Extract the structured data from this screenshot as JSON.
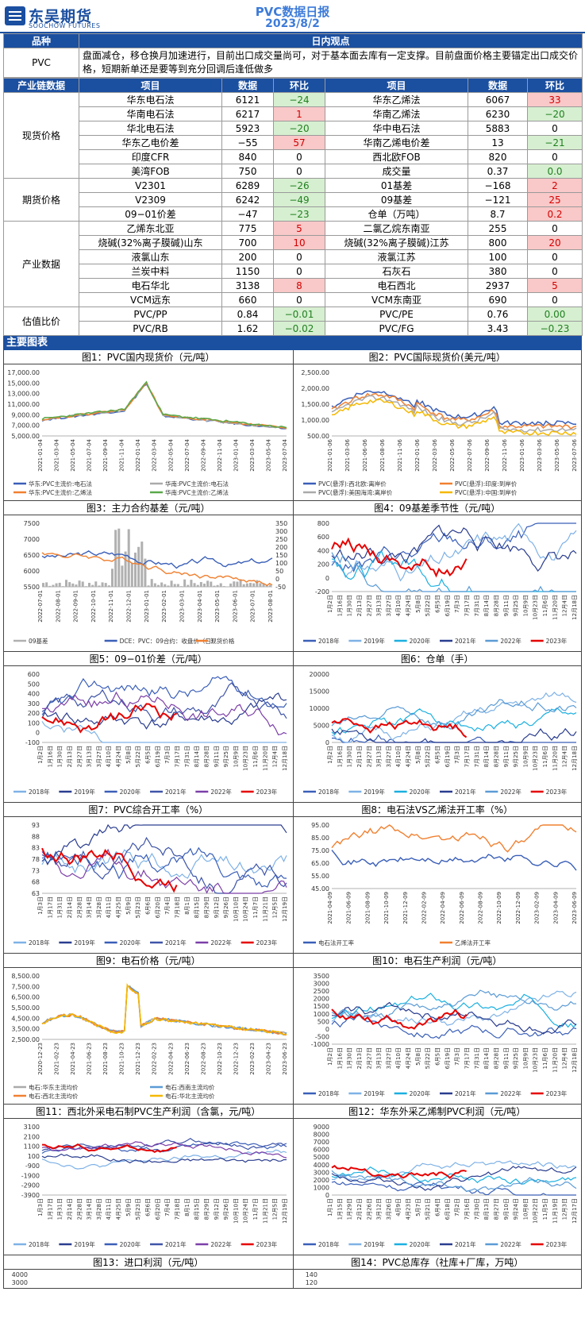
{
  "header": {
    "logo_cn": "东吴期货",
    "logo_en": "SOOCHOW FUTURES",
    "title": "PVC数据日报",
    "date": "2023/8/2"
  },
  "view": {
    "col1": "品种",
    "col2": "日内观点",
    "product": "PVC",
    "text": "盘面减仓，移仓换月加速进行，目前出口成交量尚可，对于基本面去库有一定支撑。目前盘面价格主要锚定出口成交价格，短期新单还是要等到充分回调后逢低做多"
  },
  "table": {
    "headers": [
      "产业链数据",
      "项目",
      "数据",
      "环比",
      "项目",
      "数据",
      "环比"
    ],
    "groups": [
      {
        "name": "现货价格",
        "rows": [
          [
            "华东电石法",
            "6121",
            "−24",
            "down",
            "华东乙烯法",
            "6067",
            "33",
            "up"
          ],
          [
            "华南电石法",
            "6217",
            "1",
            "up",
            "华南乙烯法",
            "6230",
            "−20",
            "down"
          ],
          [
            "华北电石法",
            "5923",
            "−20",
            "down",
            "华中电石法",
            "5883",
            "0",
            "zero"
          ],
          [
            "华东乙电价差",
            "−55",
            "57",
            "up",
            "华南乙烯电价差",
            "13",
            "−21",
            "down"
          ],
          [
            "印度CFR",
            "840",
            "0",
            "zero",
            "西北欧FOB",
            "820",
            "0",
            "zero"
          ],
          [
            "美湾FOB",
            "750",
            "0",
            "zero",
            "成交量",
            "0.37",
            "0.0",
            "down"
          ]
        ]
      },
      {
        "name": "期货价格",
        "rows": [
          [
            "V2301",
            "6289",
            "−26",
            "down",
            "01基差",
            "−168",
            "2",
            "up"
          ],
          [
            "V2309",
            "6242",
            "−49",
            "down",
            "09基差",
            "−121",
            "25",
            "up"
          ],
          [
            "09−01价差",
            "−47",
            "−23",
            "down",
            "仓单（万吨）",
            "8.7",
            "0.2",
            "up"
          ]
        ]
      },
      {
        "name": "产业数据",
        "rows": [
          [
            "乙烯东北亚",
            "775",
            "5",
            "up",
            "二氯乙烷东南亚",
            "255",
            "0",
            "zero"
          ],
          [
            "烧碱(32%离子膜碱)山东",
            "700",
            "10",
            "up",
            "烧碱(32%离子膜碱)江苏",
            "800",
            "20",
            "up"
          ],
          [
            "液氯山东",
            "200",
            "0",
            "zero",
            "液氯江苏",
            "100",
            "0",
            "zero"
          ],
          [
            "兰炭中料",
            "1150",
            "0",
            "zero",
            "石灰石",
            "380",
            "0",
            "zero"
          ],
          [
            "电石华北",
            "3138",
            "8",
            "up",
            "电石西北",
            "2937",
            "5",
            "up"
          ],
          [
            "VCM远东",
            "660",
            "0",
            "zero",
            "VCM东南亚",
            "690",
            "0",
            "zero"
          ]
        ]
      },
      {
        "name": "估值比价",
        "rows": [
          [
            "PVC/PP",
            "0.84",
            "−0.01",
            "down",
            "PVC/PE",
            "0.76",
            "0.00",
            "down"
          ],
          [
            "PVC/RB",
            "1.62",
            "−0.02",
            "down",
            "PVC/FG",
            "3.43",
            "−0.23",
            "down"
          ]
        ]
      }
    ]
  },
  "section_title": "主要图表",
  "colors": {
    "blue_dark": "#3a5fb8",
    "blue_light": "#7fb2e6",
    "cyan": "#1ab0e0",
    "navy": "#2a3d8f",
    "purple": "#7c3fa8",
    "red": "#e60000",
    "orange": "#f08030",
    "gray": "#aaaaaa",
    "green": "#5aa84a"
  },
  "charts": [
    {
      "title": "图1：PVC国内现货价（元/吨）",
      "y_ticks": [
        "17,000.00",
        "15,000.00",
        "13,000.00",
        "11,000.00",
        "9,000.00",
        "7,000.00",
        "5,000.00"
      ],
      "x_ticks": [
        "2021-01-04",
        "2021-03-04",
        "2021-05-04",
        "2021-07-04",
        "2021-09-04",
        "2021-11-04",
        "2022-01-04",
        "2022-03-04",
        "2022-05-04",
        "2022-07-04",
        "2022-09-04",
        "2022-11-04",
        "2023-01-04",
        "2023-03-04",
        "2023-05-04",
        "2023-07-04"
      ],
      "legend": [
        "华东:PVC主流价:电石法",
        "华南:PVC主流价:电石法",
        "华东:PVC主流价:乙烯法",
        "华南:PVC主流价:乙烯法"
      ]
    },
    {
      "title": "图2：PVC国际现货价(美元/吨）",
      "y_ticks": [
        "2,500.00",
        "2,000.00",
        "1,500.00",
        "1,000.00",
        "500.00"
      ],
      "x_ticks": [
        "2021-01-06",
        "2021-03-06",
        "2021-06-06",
        "2021-08-06",
        "2021-11-06",
        "2022-01-06",
        "2022-03-06",
        "2022-05-06",
        "2022-07-06",
        "2022-09-06",
        "2022-11-06",
        "2023-01-06",
        "2023-03-06",
        "2023-05-06",
        "2023-07-06"
      ],
      "legend": [
        "PVC(悬浮):西北欧:离岸价",
        "PVC(悬浮):印度:到岸价",
        "PVC(悬浮):美国海湾:离岸价",
        "PVC(悬浮):中国:到岸价"
      ]
    },
    {
      "title": "图3：主力合约基差（元/吨）",
      "y_ticks": [
        "7500",
        "7000",
        "6500",
        "6000",
        "5500"
      ],
      "y2_ticks": [
        "350",
        "300",
        "250",
        "200",
        "150",
        "100",
        "50",
        "0",
        "-50"
      ],
      "x_ticks": [
        "2022-07-01",
        "2022-08-01",
        "2022-09-01",
        "2022-10-01",
        "2022-11-01",
        "2022-12-01",
        "2023-01-01",
        "2023-02-01",
        "2023-03-01",
        "2023-04-01",
        "2023-05-01",
        "2023-06-01",
        "2023-07-01",
        "2023-08-01"
      ],
      "legend": [
        "09基差",
        "DCE：PVC：09合约：收盘价（日）",
        "现货价格"
      ]
    },
    {
      "title": "图4：09基差季节性（元/吨）",
      "y_ticks": [
        "800",
        "600",
        "400",
        "200",
        "0",
        "-200"
      ],
      "x_ticks": [
        "1月2日",
        "1月16日",
        "1月30日",
        "2月13日",
        "2月27日",
        "3月13日",
        "3月27日",
        "4月10日",
        "4月24日",
        "5月8日",
        "5月22日",
        "6月5日",
        "6月19日",
        "7月3日",
        "7月17日",
        "7月31日",
        "8月14日",
        "8月28日",
        "9月11日",
        "9月25日",
        "10月9日",
        "10月23日",
        "11月6日",
        "11月20日",
        "12月4日",
        "12月18日"
      ],
      "legend": [
        "2018年",
        "2019年",
        "2020年",
        "2021年",
        "2022年",
        "2023年"
      ]
    },
    {
      "title": "图5：09−01价差（元/吨）",
      "y_ticks": [
        "600",
        "500",
        "400",
        "300",
        "200",
        "100",
        "0",
        "-100"
      ],
      "x_ticks": [
        "1月2日",
        "1月16日",
        "1月30日",
        "2月13日",
        "2月27日",
        "3月13日",
        "3月27日",
        "4月10日",
        "4月24日",
        "5月8日",
        "5月22日",
        "6月5日",
        "6月19日",
        "7月3日",
        "7月17日",
        "7月31日",
        "8月14日",
        "8月28日",
        "9月11日",
        "9月25日",
        "10月9日",
        "10月23日",
        "11月6日",
        "11月20日",
        "12月4日",
        "12月18日"
      ],
      "legend": [
        "2018年",
        "2019年",
        "2020年",
        "2021年",
        "2022年",
        "2023年"
      ]
    },
    {
      "title": "图6：仓单（手）",
      "y_ticks": [
        "20000",
        "15000",
        "10000",
        "5000",
        "0"
      ],
      "x_ticks": [
        "1月2日",
        "1月16日",
        "1月30日",
        "2月13日",
        "2月27日",
        "3月13日",
        "3月27日",
        "4月10日",
        "4月24日",
        "5月8日",
        "5月22日",
        "6月5日",
        "6月19日",
        "7月3日",
        "7月17日",
        "7月31日",
        "8月14日",
        "8月28日",
        "9月11日",
        "9月25日",
        "10月9日",
        "10月23日",
        "11月6日",
        "11月20日",
        "12月4日",
        "12月18日"
      ],
      "legend": [
        "2018年",
        "2019年",
        "2020年",
        "2021年",
        "2022年",
        "2023年"
      ]
    },
    {
      "title": "图7：PVC综合开工率（%）",
      "y_ticks": [
        "93",
        "88",
        "83",
        "78",
        "73",
        "68",
        "63"
      ],
      "x_ticks": [
        "1月3日",
        "1月17日",
        "1月31日",
        "2月14日",
        "2月28日",
        "3月14日",
        "3月28日",
        "4月11日",
        "4月25日",
        "5月9日",
        "5月23日",
        "6月6日",
        "6月20日",
        "7月4日",
        "7月18日",
        "8月1日",
        "8月15日",
        "8月29日",
        "9月12日",
        "9月26日",
        "10月10日",
        "10月24日",
        "11月7日",
        "11月21日",
        "12月5日",
        "12月19日"
      ],
      "legend": [
        "2018年",
        "2019年",
        "2020年",
        "2021年",
        "2022年",
        "2023年"
      ]
    },
    {
      "title": "图8：电石法VS乙烯法开工率（%）",
      "y_ticks": [
        "95.00",
        "85.00",
        "75.00",
        "65.00",
        "55.00",
        "45.00"
      ],
      "x_ticks": [
        "2021-04-09",
        "2021-06-09",
        "2021-08-09",
        "2021-10-09",
        "2021-12-09",
        "2022-02-09",
        "2022-04-09",
        "2022-06-09",
        "2022-08-09",
        "2022-10-09",
        "2022-12-09",
        "2023-02-09",
        "2023-04-09",
        "2023-06-09"
      ],
      "legend": [
        "电石法开工率",
        "乙烯法开工率"
      ]
    },
    {
      "title": "图9：电石价格（元/吨）",
      "y_ticks": [
        "8,500.00",
        "7,500.00",
        "6,500.00",
        "5,500.00",
        "4,500.00",
        "3,500.00",
        "2,500.00"
      ],
      "x_ticks": [
        "2020-12-23",
        "2021-02-23",
        "2021-04-23",
        "2021-06-23",
        "2021-08-23",
        "2021-10-23",
        "2021-12-23",
        "2022-02-23",
        "2022-04-23",
        "2022-06-23",
        "2022-08-23",
        "2022-10-23",
        "2022-12-23",
        "2023-02-23",
        "2023-04-23",
        "2023-06-23"
      ],
      "legend": [
        "电石:华东主流均价",
        "电石:西南主流均价",
        "电石:西北主流均价",
        "电石:华北主流均价"
      ]
    },
    {
      "title": "图10：电石生产利润（元/吨）",
      "y_ticks": [
        "3500",
        "3000",
        "2500",
        "2000",
        "1500",
        "1000",
        "500",
        "0",
        "-500",
        "-1000"
      ],
      "x_ticks": [
        "1月2日",
        "1月16日",
        "1月30日",
        "2月13日",
        "2月27日",
        "3月13日",
        "3月27日",
        "4月10日",
        "4月24日",
        "5月8日",
        "5月22日",
        "6月5日",
        "6月19日",
        "7月3日",
        "7月17日",
        "7月31日",
        "8月14日",
        "8月28日",
        "9月11日",
        "9月25日",
        "10月9日",
        "10月23日",
        "11月6日",
        "11月20日",
        "12月4日",
        "12月18日"
      ],
      "legend": [
        "2018年",
        "2019年",
        "2020年",
        "2021年",
        "2022年",
        "2023年"
      ]
    },
    {
      "title": "图11：西北外采电石制PVC生产利润（含氯，元/吨）",
      "y_ticks": [
        "3100",
        "2100",
        "1100",
        "100",
        "-900",
        "-1900",
        "-2900",
        "-3900"
      ],
      "x_ticks": [
        "1月3日",
        "1月17日",
        "1月31日",
        "2月14日",
        "2月28日",
        "3月14日",
        "3月28日",
        "4月11日",
        "4月25日",
        "5月9日",
        "5月23日",
        "6月6日",
        "6月20日",
        "7月4日",
        "7月18日",
        "8月1日",
        "8月15日",
        "8月29日",
        "9月12日",
        "9月26日",
        "10月10日",
        "10月24日",
        "11月7日",
        "11月21日",
        "12月5日",
        "12月19日"
      ],
      "legend": [
        "2018年",
        "2019年",
        "2020年",
        "2021年",
        "2022年",
        "2023年"
      ]
    },
    {
      "title": "图12：华东外采乙烯制PVC利润（元/吨）",
      "y_ticks": [
        "9000",
        "8000",
        "7000",
        "6000",
        "5000",
        "4000",
        "3000",
        "2000",
        "1000",
        "0"
      ],
      "x_ticks": [
        "1月1日",
        "1月15日",
        "1月29日",
        "2月12日",
        "2月26日",
        "3月12日",
        "3月26日",
        "4月9日",
        "4月23日",
        "5月7日",
        "5月21日",
        "6月4日",
        "6月18日",
        "7月2日",
        "7月16日",
        "7月30日",
        "8月13日",
        "8月27日",
        "9月10日",
        "9月24日",
        "10月8日",
        "10月22日",
        "11月5日",
        "11月19日",
        "12月3日",
        "12月17日"
      ],
      "legend": [
        "2018年",
        "2019年",
        "2020年",
        "2021年",
        "2022年",
        "2023年"
      ]
    },
    {
      "title": "图13：进口利润（元/吨）",
      "y_ticks": [
        "4000",
        "3000"
      ]
    },
    {
      "title": "图14：PVC总库存（社库+厂库，万吨）",
      "y_ticks": [
        "140",
        "120"
      ]
    }
  ]
}
